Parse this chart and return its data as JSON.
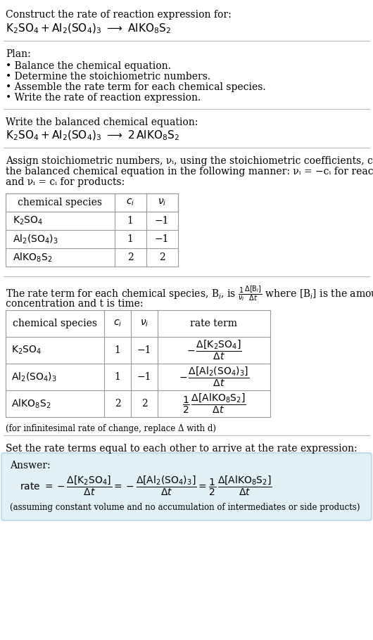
{
  "bg_color": "#ffffff",
  "text_color": "#000000",
  "title_line1": "Construct the rate of reaction expression for:",
  "plan_header": "Plan:",
  "plan_items": [
    "• Balance the chemical equation.",
    "• Determine the stoichiometric numbers.",
    "• Assemble the rate term for each chemical species.",
    "• Write the rate of reaction expression."
  ],
  "balanced_header": "Write the balanced chemical equation:",
  "stoich_lines": [
    "Assign stoichiometric numbers, νᵢ, using the stoichiometric coefficients, cᵢ, from",
    "the balanced chemical equation in the following manner: νᵢ = −cᵢ for reactants",
    "and νᵢ = cᵢ for products:"
  ],
  "ci_vals": [
    "1",
    "1",
    "2"
  ],
  "nu_vals": [
    "−1",
    "−1",
    "2"
  ],
  "infinitesimal_note": "(for infinitesimal rate of change, replace Δ with d)",
  "set_header": "Set the rate terms equal to each other to arrive at the rate expression:",
  "answer_label": "Answer:",
  "answer_bg": "#dff0f7",
  "answer_border": "#b0d0e8",
  "note_line": "(assuming constant volume and no accumulation of intermediates or side products)",
  "font_size": 10,
  "font_size_small": 8.5,
  "hline_color": "#bbbbbb",
  "table_border_color": "#999999"
}
